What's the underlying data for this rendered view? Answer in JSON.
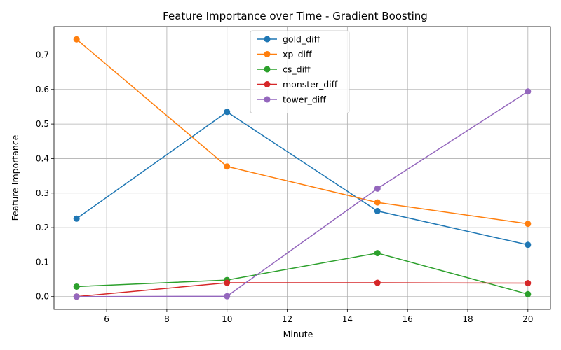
{
  "chart_data": {
    "type": "line",
    "title": "Feature Importance over Time - Gradient Boosting",
    "xlabel": "Minute",
    "ylabel": "Feature Importance",
    "x": [
      5,
      10,
      15,
      20
    ],
    "xlim": [
      4.25,
      20.75
    ],
    "ylim": [
      -0.037,
      0.782
    ],
    "xticks": [
      6,
      8,
      10,
      12,
      14,
      16,
      18,
      20
    ],
    "yticks": [
      0.0,
      0.1,
      0.2,
      0.3,
      0.4,
      0.5,
      0.6,
      0.7
    ],
    "grid": true,
    "legend_position": "top-center",
    "series": [
      {
        "name": "gold_diff",
        "color": "#1f77b4",
        "values": [
          0.226,
          0.535,
          0.248,
          0.15
        ]
      },
      {
        "name": "xp_diff",
        "color": "#ff7f0e",
        "values": [
          0.745,
          0.377,
          0.273,
          0.211
        ]
      },
      {
        "name": "cs_diff",
        "color": "#2ca02c",
        "values": [
          0.029,
          0.048,
          0.126,
          0.007
        ]
      },
      {
        "name": "monster_diff",
        "color": "#d62728",
        "values": [
          0.0,
          0.04,
          0.04,
          0.039
        ]
      },
      {
        "name": "tower_diff",
        "color": "#9467bd",
        "values": [
          0.0,
          0.001,
          0.313,
          0.594
        ]
      }
    ]
  }
}
